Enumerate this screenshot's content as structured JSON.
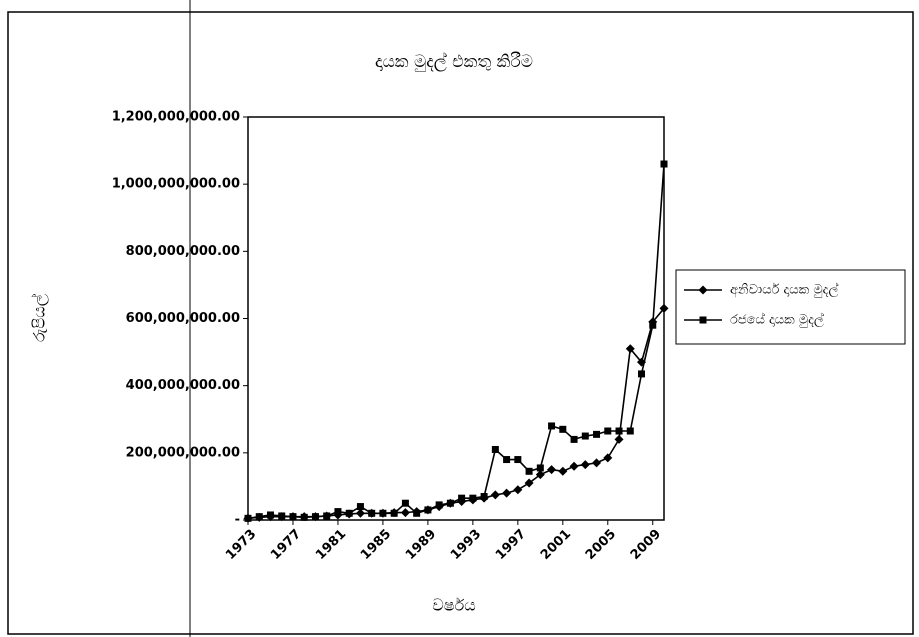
{
  "chart_data": {
    "type": "line",
    "title": "දායක මුදල් එකතු කිරීම",
    "xlabel": "වර්ෂය",
    "ylabel": "රුපියල්",
    "x": [
      1973,
      1974,
      1975,
      1976,
      1977,
      1978,
      1979,
      1980,
      1981,
      1982,
      1983,
      1984,
      1985,
      1986,
      1987,
      1988,
      1989,
      1990,
      1991,
      1992,
      1993,
      1994,
      1995,
      1996,
      1997,
      1998,
      1999,
      2000,
      2001,
      2002,
      2003,
      2004,
      2005,
      2006,
      2007,
      2008,
      2009,
      2010
    ],
    "xlim": [
      1973,
      2010
    ],
    "xticks": [
      1973,
      1977,
      1981,
      1985,
      1989,
      1993,
      1997,
      2001,
      2005,
      2009
    ],
    "ylim": [
      0,
      1200000000
    ],
    "yticks": [
      {
        "value": 0,
        "label": "-"
      },
      {
        "value": 200000000,
        "label": "200,000,000.00"
      },
      {
        "value": 400000000,
        "label": "400,000,000.00"
      },
      {
        "value": 600000000,
        "label": "600,000,000.00"
      },
      {
        "value": 800000000,
        "label": "800,000,000.00"
      },
      {
        "value": 1000000000,
        "label": "1,000,000,000.00"
      },
      {
        "value": 1200000000,
        "label": "1,200,000,000.00"
      }
    ],
    "legend": "right",
    "series": [
      {
        "name": "අනිවාර්ය දායක මුදල්",
        "color": "#000000",
        "marker": "diamond",
        "values": [
          5000000,
          8000000,
          10000000,
          10000000,
          10000000,
          10000000,
          10000000,
          12000000,
          15000000,
          18000000,
          20000000,
          20000000,
          20000000,
          22000000,
          22000000,
          25000000,
          30000000,
          40000000,
          50000000,
          55000000,
          60000000,
          65000000,
          75000000,
          80000000,
          90000000,
          110000000,
          135000000,
          150000000,
          145000000,
          160000000,
          165000000,
          170000000,
          185000000,
          240000000,
          510000000,
          470000000,
          590000000,
          630000000
        ]
      },
      {
        "name": "රජයේ දායක මුදල්",
        "color": "#000000",
        "marker": "square",
        "values": [
          5000000,
          10000000,
          15000000,
          12000000,
          10000000,
          8000000,
          10000000,
          12000000,
          25000000,
          20000000,
          40000000,
          20000000,
          20000000,
          20000000,
          50000000,
          20000000,
          30000000,
          45000000,
          50000000,
          65000000,
          65000000,
          70000000,
          210000000,
          180000000,
          180000000,
          145000000,
          155000000,
          280000000,
          270000000,
          240000000,
          250000000,
          255000000,
          265000000,
          265000000,
          265000000,
          435000000,
          580000000,
          1060000000
        ]
      }
    ]
  }
}
